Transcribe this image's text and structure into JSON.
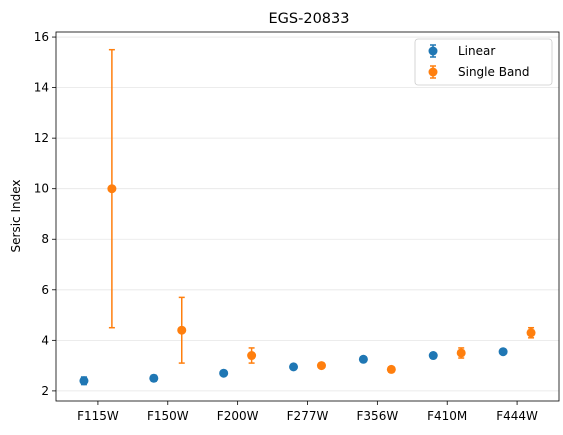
{
  "chart_data": {
    "type": "scatter",
    "title": "EGS-20833",
    "xlabel": "",
    "ylabel": "Sersic Index",
    "categories": [
      "F115W",
      "F150W",
      "F200W",
      "F277W",
      "F356W",
      "F410M",
      "F444W"
    ],
    "ylim": [
      1.6,
      16.2
    ],
    "yticks": [
      2,
      4,
      6,
      8,
      10,
      12,
      14,
      16
    ],
    "grid": "horizontal",
    "legend_position": "top-right",
    "series": [
      {
        "name": "Linear",
        "color": "#1f77b4",
        "offset": -0.2,
        "values": [
          2.4,
          2.5,
          2.7,
          2.95,
          3.25,
          3.4,
          3.55
        ],
        "errors": [
          0.15,
          0.12,
          0.1,
          0.1,
          0.1,
          0.1,
          0.1
        ]
      },
      {
        "name": "Single Band",
        "color": "#ff7f0e",
        "offset": 0.2,
        "values": [
          10.0,
          4.4,
          3.4,
          3.0,
          2.85,
          3.5,
          4.3
        ],
        "errors": [
          5.5,
          1.3,
          0.3,
          0.1,
          0.1,
          0.2,
          0.2
        ]
      }
    ]
  }
}
